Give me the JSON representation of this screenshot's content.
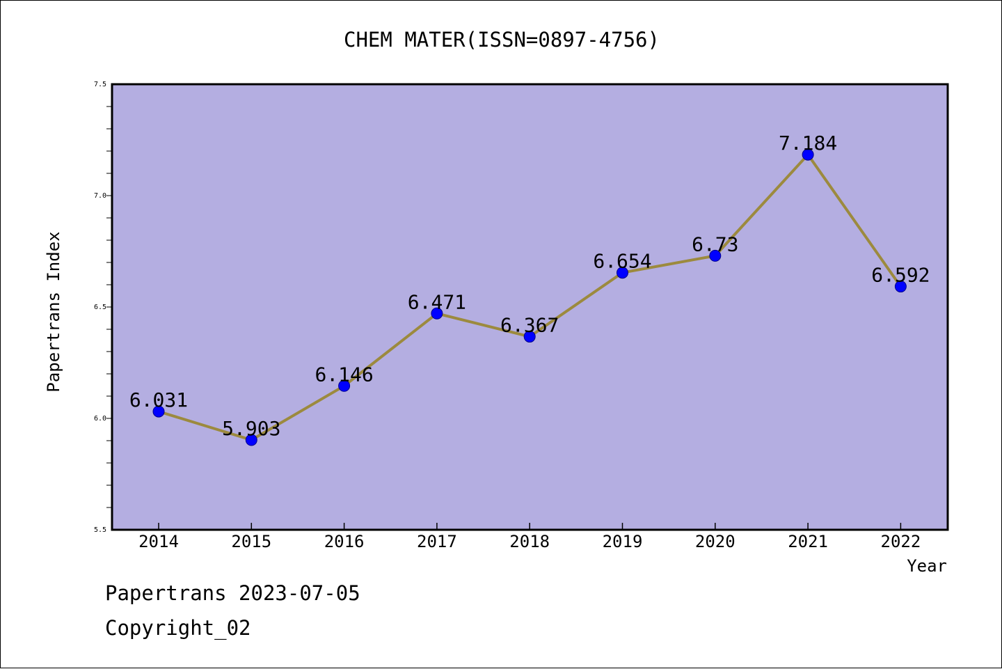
{
  "chart_data": {
    "type": "line",
    "title": "CHEM MATER(ISSN=0897-4756)",
    "xlabel": "Year",
    "ylabel": "Papertrans Index",
    "categories": [
      "2014",
      "2015",
      "2016",
      "2017",
      "2018",
      "2019",
      "2020",
      "2021",
      "2022"
    ],
    "series": [
      {
        "values": [
          6.031,
          5.903,
          6.146,
          6.471,
          6.367,
          6.654,
          6.73,
          7.184,
          6.592
        ],
        "labels": [
          "6.031",
          "5.903",
          "6.146",
          "6.471",
          "6.367",
          "6.654",
          "6.73",
          "7.184",
          "6.592"
        ]
      }
    ],
    "ylim": [
      5.5,
      7.5
    ],
    "yticks": [
      "5.5",
      "6.0",
      "6.5",
      "7.0",
      "7.5"
    ],
    "grid": false,
    "colors": {
      "plot_background": "#b4aee1",
      "line": "#9c8a3e",
      "marker": "#0000ff"
    }
  },
  "footer": {
    "date_text": "Papertrans 2023-07-05",
    "copyright_text": "Copyright_02"
  }
}
